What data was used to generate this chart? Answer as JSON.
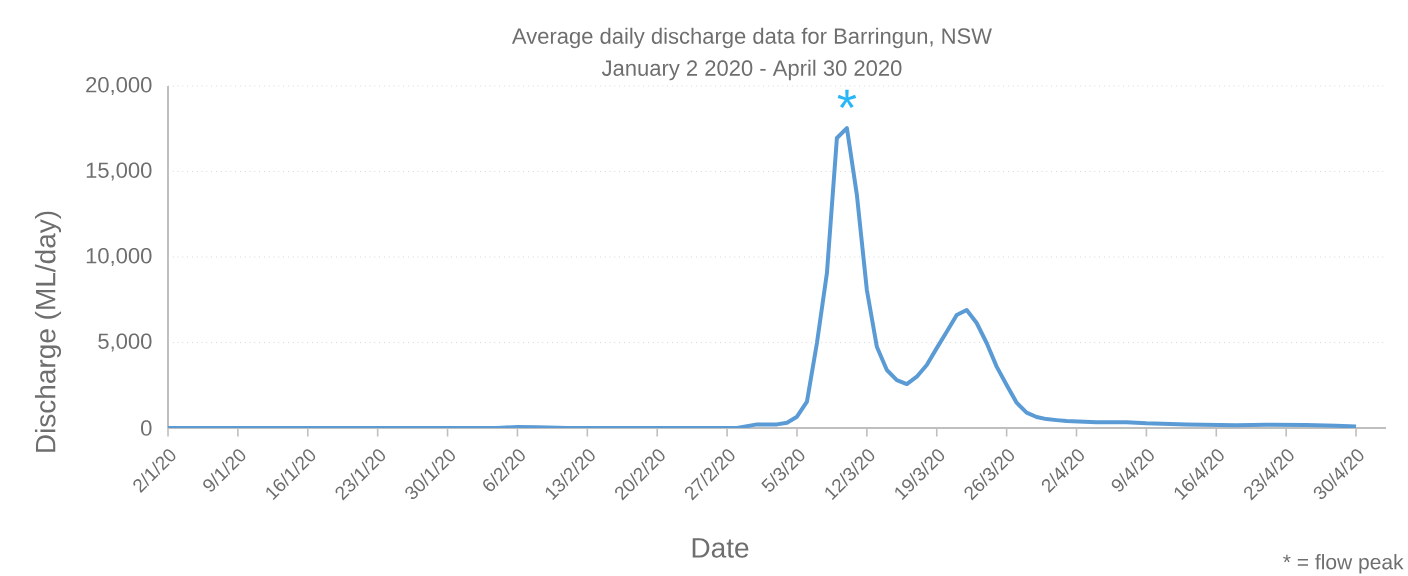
{
  "chart_data": {
    "type": "line",
    "title": "Average daily discharge data for Barringun, NSW",
    "subtitle": "January 2 2020 - April 30 2020",
    "xlabel": "Date",
    "ylabel": "Discharge (ML/day)",
    "series": [
      {
        "color": "#5b9bd5",
        "x": [
          "2020-01-02",
          "2020-02-04",
          "2020-02-06",
          "2020-02-08",
          "2020-02-11",
          "2020-02-28",
          "2020-02-29",
          "2020-03-01",
          "2020-03-02",
          "2020-03-03",
          "2020-03-04",
          "2020-03-05",
          "2020-03-06",
          "2020-03-07",
          "2020-03-08",
          "2020-03-09",
          "2020-03-10",
          "2020-03-11",
          "2020-03-12",
          "2020-03-13",
          "2020-03-14",
          "2020-03-15",
          "2020-03-16",
          "2020-03-17",
          "2020-03-18",
          "2020-03-19",
          "2020-03-20",
          "2020-03-21",
          "2020-03-22",
          "2020-03-23",
          "2020-03-24",
          "2020-03-25",
          "2020-03-26",
          "2020-03-27",
          "2020-03-28",
          "2020-03-29",
          "2020-03-30",
          "2020-03-31",
          "2020-04-01",
          "2020-04-04",
          "2020-04-07",
          "2020-04-09",
          "2020-04-13",
          "2020-04-18",
          "2020-04-21",
          "2020-04-25",
          "2020-04-28",
          "2020-04-30"
        ],
        "values": [
          0,
          0,
          60,
          40,
          0,
          0,
          110,
          210,
          210,
          210,
          310,
          660,
          1540,
          4970,
          9060,
          16960,
          17540,
          13630,
          8070,
          4750,
          3390,
          2800,
          2570,
          3000,
          3680,
          4670,
          5630,
          6610,
          6900,
          6140,
          4970,
          3590,
          2510,
          1480,
          900,
          640,
          520,
          460,
          410,
          330,
          330,
          270,
          210,
          160,
          190,
          170,
          130,
          90
        ]
      }
    ],
    "xlim": [
      "2020-01-02",
      "2020-05-03"
    ],
    "xticks": [
      {
        "value": "2020-01-02",
        "label": "2/1/20"
      },
      {
        "value": "2020-01-09",
        "label": "9/1/20"
      },
      {
        "value": "2020-01-16",
        "label": "16/1/20"
      },
      {
        "value": "2020-01-23",
        "label": "23/1/20"
      },
      {
        "value": "2020-01-30",
        "label": "30/1/20"
      },
      {
        "value": "2020-02-06",
        "label": "6/2/20"
      },
      {
        "value": "2020-02-13",
        "label": "13/2/20"
      },
      {
        "value": "2020-02-20",
        "label": "20/2/20"
      },
      {
        "value": "2020-02-27",
        "label": "27/2/20"
      },
      {
        "value": "2020-03-05",
        "label": "5/3/20"
      },
      {
        "value": "2020-03-12",
        "label": "12/3/20"
      },
      {
        "value": "2020-03-19",
        "label": "19/3/20"
      },
      {
        "value": "2020-03-26",
        "label": "26/3/20"
      },
      {
        "value": "2020-04-02",
        "label": "2/4/20"
      },
      {
        "value": "2020-04-09",
        "label": "9/4/20"
      },
      {
        "value": "2020-04-16",
        "label": "16/4/20"
      },
      {
        "value": "2020-04-23",
        "label": "23/4/20"
      },
      {
        "value": "2020-04-30",
        "label": "30/4/20"
      }
    ],
    "ylim": [
      0,
      20000
    ],
    "yticks": [
      0,
      {
        "value": 5000,
        "label": "5,000"
      },
      {
        "value": 10000,
        "label": "10,000"
      },
      {
        "value": 15000,
        "label": "15,000"
      },
      {
        "value": 20000,
        "label": "20,000"
      }
    ],
    "grid": "y",
    "annotations": [
      {
        "text": "*",
        "x": "2020-03-10",
        "y": 17540
      },
      "* = flow peak"
    ]
  }
}
